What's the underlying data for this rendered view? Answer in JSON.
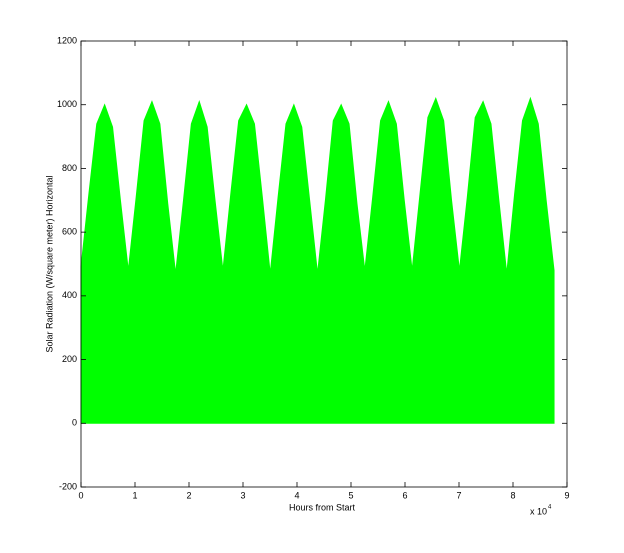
{
  "chart_data": {
    "type": "area",
    "x_label": "Hours from Start",
    "y_label": "Solar Radiation (W/square meter) Horizontal",
    "x_exponent_label": {
      "base": "x 10",
      "exponent": "4"
    },
    "x": [
      0,
      0.146,
      0.292,
      0.438,
      0.584,
      0.73,
      0.876,
      1.022,
      1.168,
      1.314,
      1.46,
      1.606,
      1.752,
      1.898,
      2.044,
      2.19,
      2.336,
      2.482,
      2.628,
      2.774,
      2.92,
      3.066,
      3.212,
      3.358,
      3.504,
      3.65,
      3.796,
      3.942,
      4.088,
      4.234,
      4.38,
      4.526,
      4.672,
      4.818,
      4.964,
      5.11,
      5.256,
      5.402,
      5.548,
      5.694,
      5.84,
      5.986,
      6.132,
      6.278,
      6.424,
      6.57,
      6.716,
      6.862,
      7.008,
      7.154,
      7.3,
      7.446,
      7.592,
      7.738,
      7.884,
      8.03,
      8.176,
      8.322,
      8.468,
      8.614,
      8.76
    ],
    "series": [
      {
        "name": "Solar Radiation",
        "color": "#00ff00",
        "values": [
          490,
          720,
          940,
          1000,
          930,
          700,
          480,
          710,
          950,
          1010,
          940,
          690,
          470,
          700,
          940,
          1010,
          930,
          700,
          480,
          720,
          950,
          1000,
          940,
          710,
          470,
          710,
          940,
          1000,
          930,
          700,
          470,
          700,
          950,
          1000,
          940,
          690,
          480,
          710,
          950,
          1010,
          940,
          700,
          480,
          720,
          960,
          1020,
          950,
          700,
          480,
          710,
          960,
          1010,
          940,
          700,
          470,
          720,
          950,
          1020,
          940,
          700,
          480
        ]
      }
    ],
    "xlim": [
      0,
      9
    ],
    "xticks": [
      0,
      1,
      2,
      3,
      4,
      5,
      6,
      7,
      8,
      9
    ],
    "ylim": [
      -200,
      1200
    ],
    "yticks": [
      -200,
      0,
      200,
      400,
      600,
      800,
      1000,
      1200
    ],
    "grid": false
  }
}
